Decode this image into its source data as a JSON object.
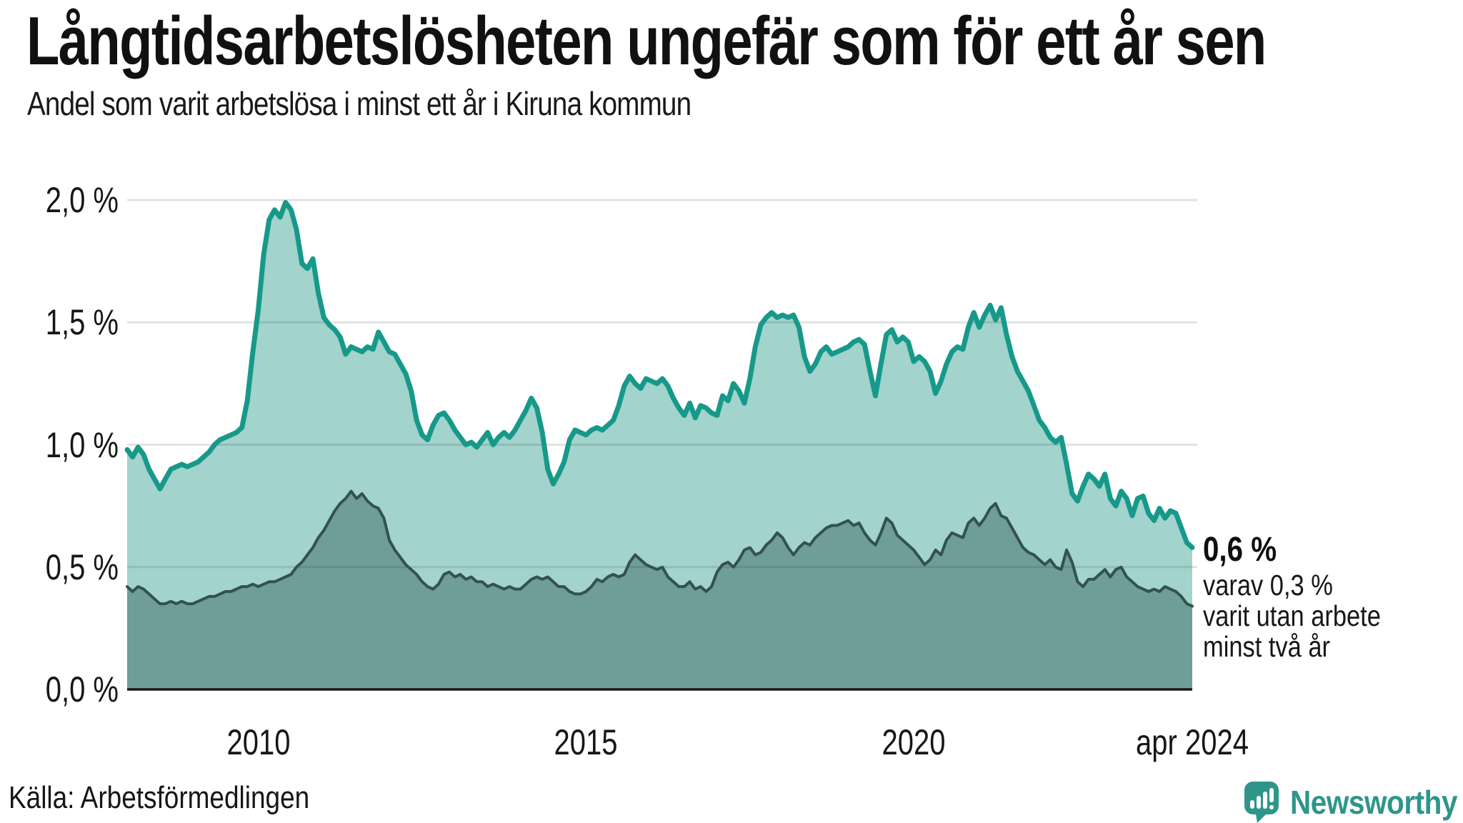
{
  "header": {
    "title": "Långtidsarbetslösheten ungefär som för ett år sen",
    "subtitle": "Andel som varit arbetslösa i minst ett år i Kiruna kommun"
  },
  "annotation": {
    "value": "0,6 %",
    "line1": "varav 0,3 %",
    "line2": "varit utan arbete",
    "line3": "minst två år"
  },
  "source": {
    "label": "Källa: Arbetsförmedlingen"
  },
  "branding": {
    "name": "Newsworthy",
    "icon": "newsworthy-speech-bubble-chart-icon",
    "color": "#2f958a"
  },
  "chart_data": {
    "type": "area",
    "title": "Långtidsarbetslösheten ungefär som för ett år sen",
    "subtitle": "Andel som varit arbetslösa i minst ett år i Kiruna kommun",
    "unit": "%",
    "x_start": "2008-01",
    "x_end": "2024-04",
    "x_step": "monthly",
    "ylim": [
      0,
      2.05
    ],
    "grid": true,
    "axis_color": "#1a1a1a",
    "gridline_color": "rgba(40,55,60,0.14)",
    "y_ticks": [
      {
        "value": 2.0,
        "label": "2,0 %"
      },
      {
        "value": 1.5,
        "label": "1,5 %"
      },
      {
        "value": 1.0,
        "label": "1,0 %"
      },
      {
        "value": 0.5,
        "label": "0,5 %"
      },
      {
        "value": 0.0,
        "label": "0,0 %"
      }
    ],
    "x_ticks": [
      {
        "value": 2010.0,
        "label": "2010"
      },
      {
        "value": 2015.0,
        "label": "2015"
      },
      {
        "value": 2020.0,
        "label": "2020"
      },
      {
        "value": 2024.25,
        "label": "apr 2024"
      }
    ],
    "series": [
      {
        "name": "Andel arbetslösa minst ett år",
        "line_color": "#17998a",
        "fill_color": "#a2d3cc",
        "line_width": 7,
        "end_label": "0,6 %",
        "values": [
          0.98,
          0.95,
          0.99,
          0.96,
          0.9,
          0.86,
          0.82,
          0.86,
          0.9,
          0.91,
          0.92,
          0.91,
          0.92,
          0.93,
          0.95,
          0.97,
          1.0,
          1.02,
          1.03,
          1.04,
          1.05,
          1.07,
          1.18,
          1.38,
          1.55,
          1.78,
          1.92,
          1.96,
          1.93,
          1.99,
          1.96,
          1.88,
          1.74,
          1.72,
          1.76,
          1.62,
          1.52,
          1.49,
          1.47,
          1.44,
          1.37,
          1.4,
          1.39,
          1.38,
          1.4,
          1.39,
          1.46,
          1.42,
          1.38,
          1.37,
          1.33,
          1.29,
          1.22,
          1.1,
          1.04,
          1.02,
          1.08,
          1.12,
          1.13,
          1.1,
          1.06,
          1.03,
          1.0,
          1.01,
          0.99,
          1.02,
          1.05,
          1.0,
          1.03,
          1.05,
          1.03,
          1.06,
          1.1,
          1.14,
          1.19,
          1.15,
          1.05,
          0.9,
          0.84,
          0.88,
          0.93,
          1.02,
          1.06,
          1.05,
          1.04,
          1.06,
          1.07,
          1.06,
          1.08,
          1.1,
          1.16,
          1.24,
          1.28,
          1.25,
          1.23,
          1.27,
          1.26,
          1.25,
          1.27,
          1.24,
          1.19,
          1.15,
          1.12,
          1.17,
          1.11,
          1.16,
          1.15,
          1.13,
          1.12,
          1.2,
          1.18,
          1.25,
          1.22,
          1.17,
          1.27,
          1.4,
          1.49,
          1.52,
          1.54,
          1.52,
          1.53,
          1.52,
          1.53,
          1.48,
          1.36,
          1.3,
          1.33,
          1.38,
          1.4,
          1.37,
          1.38,
          1.39,
          1.4,
          1.42,
          1.43,
          1.41,
          1.3,
          1.2,
          1.33,
          1.45,
          1.47,
          1.42,
          1.44,
          1.42,
          1.34,
          1.36,
          1.34,
          1.3,
          1.21,
          1.26,
          1.33,
          1.38,
          1.4,
          1.39,
          1.48,
          1.54,
          1.48,
          1.53,
          1.57,
          1.51,
          1.56,
          1.45,
          1.36,
          1.3,
          1.26,
          1.22,
          1.16,
          1.1,
          1.07,
          1.03,
          1.01,
          1.03,
          0.92,
          0.8,
          0.77,
          0.83,
          0.88,
          0.86,
          0.83,
          0.88,
          0.78,
          0.75,
          0.81,
          0.78,
          0.71,
          0.78,
          0.79,
          0.72,
          0.69,
          0.74,
          0.7,
          0.73,
          0.72,
          0.66,
          0.6,
          0.58
        ]
      },
      {
        "name": "Andel arbetslösa minst två år",
        "line_color": "#33524e",
        "fill_color": "#6f9d98",
        "line_width": 4,
        "end_label": "0,3 %",
        "values": [
          0.42,
          0.4,
          0.42,
          0.41,
          0.39,
          0.37,
          0.35,
          0.35,
          0.36,
          0.35,
          0.36,
          0.35,
          0.35,
          0.36,
          0.37,
          0.38,
          0.38,
          0.39,
          0.4,
          0.4,
          0.41,
          0.42,
          0.42,
          0.43,
          0.42,
          0.43,
          0.44,
          0.44,
          0.45,
          0.46,
          0.47,
          0.5,
          0.52,
          0.55,
          0.58,
          0.62,
          0.65,
          0.69,
          0.73,
          0.76,
          0.78,
          0.81,
          0.78,
          0.8,
          0.77,
          0.75,
          0.74,
          0.7,
          0.61,
          0.57,
          0.54,
          0.51,
          0.49,
          0.47,
          0.44,
          0.42,
          0.41,
          0.43,
          0.47,
          0.48,
          0.46,
          0.47,
          0.45,
          0.46,
          0.44,
          0.44,
          0.42,
          0.43,
          0.42,
          0.41,
          0.42,
          0.41,
          0.41,
          0.43,
          0.45,
          0.46,
          0.45,
          0.46,
          0.44,
          0.42,
          0.42,
          0.4,
          0.39,
          0.39,
          0.4,
          0.42,
          0.45,
          0.44,
          0.46,
          0.47,
          0.46,
          0.47,
          0.52,
          0.55,
          0.53,
          0.51,
          0.5,
          0.49,
          0.5,
          0.46,
          0.44,
          0.42,
          0.42,
          0.44,
          0.41,
          0.42,
          0.4,
          0.42,
          0.48,
          0.51,
          0.52,
          0.5,
          0.53,
          0.57,
          0.58,
          0.55,
          0.56,
          0.59,
          0.61,
          0.64,
          0.62,
          0.58,
          0.55,
          0.58,
          0.6,
          0.59,
          0.62,
          0.64,
          0.66,
          0.67,
          0.67,
          0.68,
          0.69,
          0.67,
          0.68,
          0.64,
          0.61,
          0.59,
          0.64,
          0.7,
          0.68,
          0.63,
          0.61,
          0.59,
          0.57,
          0.54,
          0.51,
          0.53,
          0.57,
          0.55,
          0.61,
          0.64,
          0.63,
          0.62,
          0.68,
          0.7,
          0.67,
          0.7,
          0.74,
          0.76,
          0.71,
          0.7,
          0.66,
          0.62,
          0.58,
          0.56,
          0.55,
          0.53,
          0.51,
          0.53,
          0.5,
          0.49,
          0.57,
          0.52,
          0.44,
          0.42,
          0.45,
          0.45,
          0.47,
          0.49,
          0.46,
          0.49,
          0.5,
          0.46,
          0.44,
          0.42,
          0.41,
          0.4,
          0.41,
          0.4,
          0.42,
          0.41,
          0.4,
          0.38,
          0.35,
          0.34
        ]
      }
    ]
  }
}
